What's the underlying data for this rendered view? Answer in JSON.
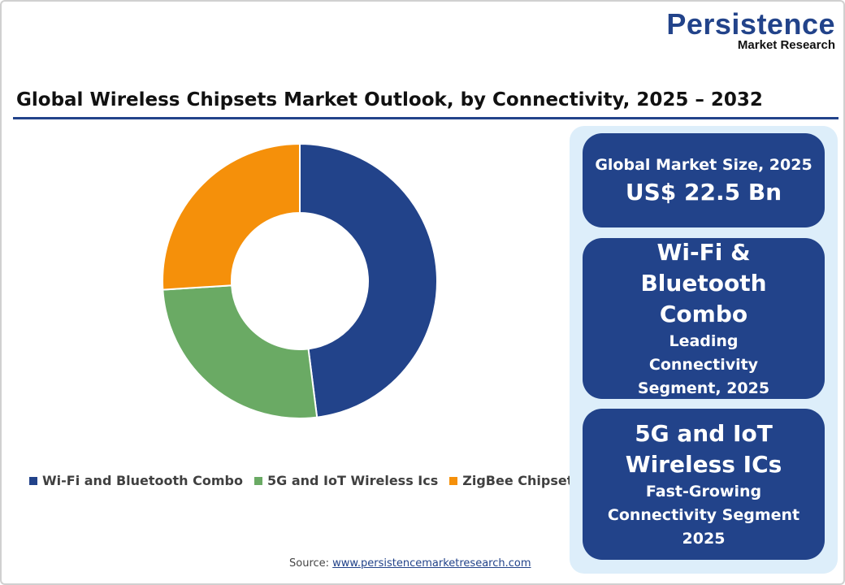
{
  "logo": {
    "line1": "Persistence",
    "line2": "Market Research"
  },
  "title": "Global Wireless Chipsets Market Outlook, by Connectivity, 2025 – 2032",
  "chart_data": {
    "type": "pie",
    "donut": true,
    "categories": [
      "Wi-Fi and Bluetooth Combo",
      "5G and IoT Wireless Ics",
      "ZigBee Chipsets"
    ],
    "values": [
      48,
      26,
      26
    ],
    "colors": [
      "#22438a",
      "#6aaa64",
      "#f5900a"
    ],
    "legend_position": "bottom"
  },
  "source": {
    "label": "Source: ",
    "link": "www.persistencemarketresearch.com"
  },
  "cards": [
    {
      "line1": "Global Market Size, 2025",
      "line2": "US$ 22.5 Bn"
    },
    {
      "line1": "Wi-Fi & Bluetooth Combo",
      "line2": "Leading Connectivity Segment, 2025"
    },
    {
      "line1": "5G and IoT Wireless ICs",
      "line2": "Fast-Growing Connectivity Segment 2025"
    }
  ]
}
